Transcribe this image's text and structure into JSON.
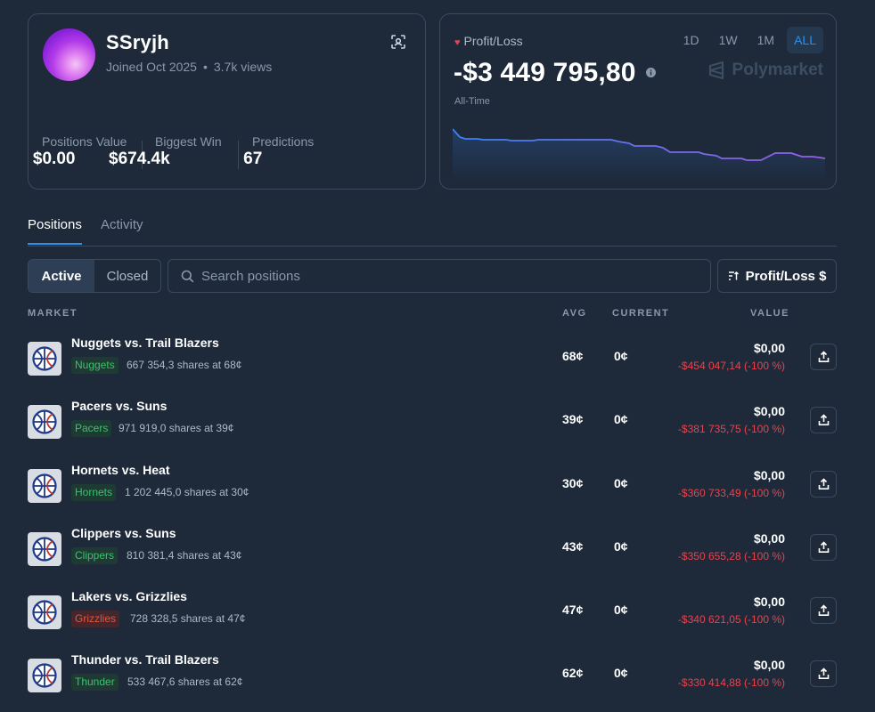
{
  "profile": {
    "username": "SSryjh",
    "joined": "Joined Oct 2025",
    "views": "3.7k views",
    "stats": [
      {
        "label": "Positions Value",
        "value": "$0.00"
      },
      {
        "label": "Biggest Win",
        "value": "$674.4k"
      },
      {
        "label": "Predictions",
        "value": "67"
      }
    ]
  },
  "pnl": {
    "label": "Profit/Loss",
    "value": "-$3 449 795,80",
    "period_label": "All-Time",
    "brand": "Polymarket",
    "ranges": [
      "1D",
      "1W",
      "1M",
      "ALL"
    ],
    "active_range": "ALL",
    "colors": {
      "line_start": "#3b82f6",
      "line_end": "#9b5de5",
      "heart": "#e8434d"
    }
  },
  "tabs": {
    "positions": "Positions",
    "activity": "Activity",
    "active": "positions"
  },
  "filters": {
    "active": "Active",
    "closed": "Closed",
    "search_placeholder": "Search positions",
    "sort_label": "Profit/Loss $"
  },
  "table": {
    "headers": {
      "market": "MARKET",
      "avg": "AVG",
      "current": "CURRENT",
      "value": "VALUE"
    },
    "rows": [
      {
        "title": "Nuggets vs. Trail Blazers",
        "outcome": "Nuggets",
        "outcome_color": "green",
        "shares": "667 354,3 shares at 68¢",
        "avg": "68¢",
        "current": "0¢",
        "value": "$0,00",
        "pnl": "-$454 047,14 (-100 %)"
      },
      {
        "title": "Pacers vs. Suns",
        "outcome": "Pacers",
        "outcome_color": "green",
        "shares": "971 919,0 shares at 39¢",
        "avg": "39¢",
        "current": "0¢",
        "value": "$0,00",
        "pnl": "-$381 735,75 (-100 %)"
      },
      {
        "title": "Hornets vs. Heat",
        "outcome": "Hornets",
        "outcome_color": "green",
        "shares": "1 202 445,0 shares at 30¢",
        "avg": "30¢",
        "current": "0¢",
        "value": "$0,00",
        "pnl": "-$360 733,49 (-100 %)"
      },
      {
        "title": "Clippers vs. Suns",
        "outcome": "Clippers",
        "outcome_color": "green",
        "shares": "810 381,4 shares at 43¢",
        "avg": "43¢",
        "current": "0¢",
        "value": "$0,00",
        "pnl": "-$350 655,28 (-100 %)"
      },
      {
        "title": "Lakers vs. Grizzlies",
        "outcome": "Grizzlies",
        "outcome_color": "red",
        "shares": "728 328,5 shares at 47¢",
        "avg": "47¢",
        "current": "0¢",
        "value": "$0,00",
        "pnl": "-$340 621,05 (-100 %)"
      },
      {
        "title": "Thunder vs. Trail Blazers",
        "outcome": "Thunder",
        "outcome_color": "green",
        "shares": "533 467,6 shares at 62¢",
        "avg": "62¢",
        "current": "0¢",
        "value": "$0,00",
        "pnl": "-$330 414,88 (-100 %)"
      }
    ]
  }
}
